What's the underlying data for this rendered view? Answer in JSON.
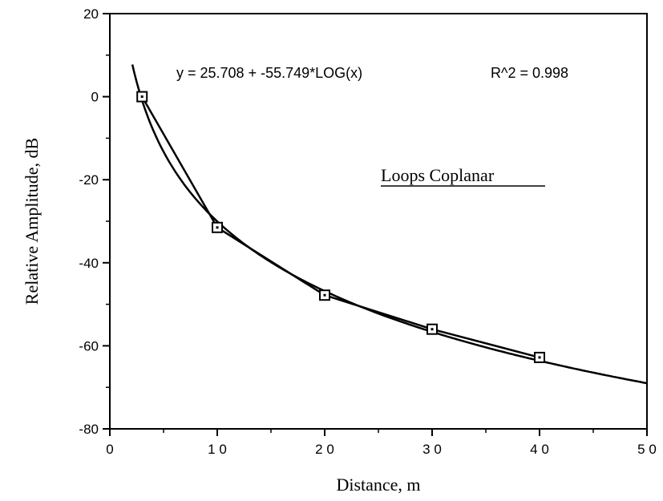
{
  "chart_data": {
    "type": "line",
    "xlabel": "Distance, m",
    "ylabel": "Relative Amplitude, dB",
    "xlim": [
      0,
      50
    ],
    "ylim": [
      -80,
      20
    ],
    "x_ticks": [
      0,
      10,
      20,
      30,
      40,
      50
    ],
    "x_tick_labels": [
      "0",
      "1 0",
      "2 0",
      "3 0",
      "4 0",
      "5 0"
    ],
    "y_ticks": [
      -80,
      -60,
      -40,
      -20,
      0,
      20
    ],
    "y_tick_labels": [
      "-80",
      "-60",
      "-40",
      "-20",
      "0",
      "20"
    ],
    "grid": false,
    "series": [
      {
        "style": "line-with-square-markers",
        "x": [
          3,
          10,
          20,
          30,
          40
        ],
        "y": [
          0,
          -31.5,
          -47.8,
          -56,
          -62.8
        ]
      },
      {
        "style": "fit-curve",
        "model": "y = 25.708 + -55.749*log10(x)",
        "x_range": [
          2.1,
          50
        ]
      }
    ],
    "annotations": [
      {
        "text": "y  =  25.708  +  -55.749*LOG(x)"
      },
      {
        "text": "R^2  =  0.998"
      },
      {
        "text": "Loops Coplanar",
        "underline": true
      }
    ]
  }
}
